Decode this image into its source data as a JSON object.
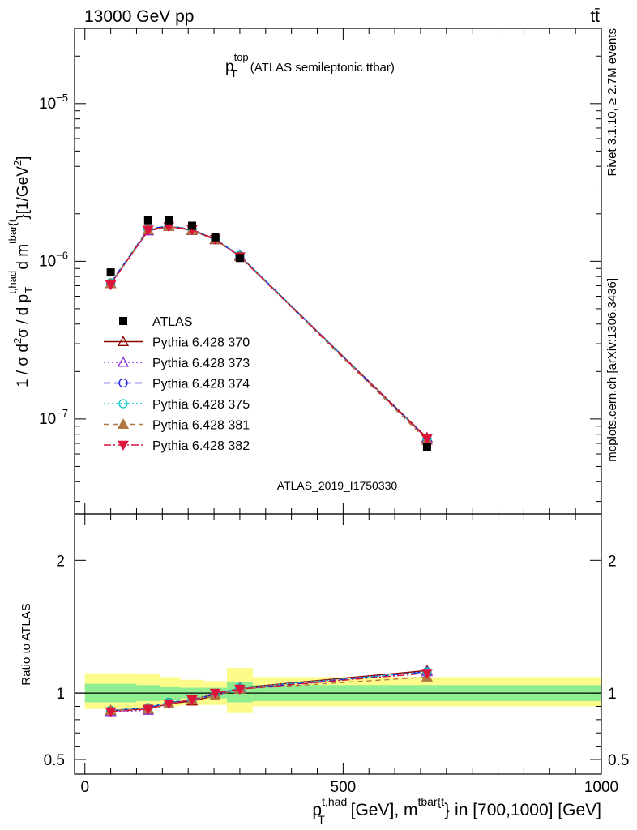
{
  "header": {
    "energy_label": "13000 GeV pp",
    "process_label": "tt̄"
  },
  "side_labels": {
    "rivet": "Rivet 3.1.10, ≥ 2.7M events",
    "url": "mcplots.cern.ch [arXiv:1306.3436]"
  },
  "chart_data": [
    {
      "type": "line",
      "panel": "main",
      "title": {
        "main": "p",
        "sub": "T",
        "sup": "top",
        "rest": " (ATLAS semileptonic ttbar)"
      },
      "watermark": "ATLAS_2019_I1750330",
      "ylabel": "1 / σ d²σ / d p_T^{t,had} d m^{tbar{t}} [1/GeV²]",
      "ylabel_parts": {
        "a": "1 / σ d",
        "a_sup": "2",
        "b": "σ / d p",
        "b_sub": "T",
        "b_sup": "t,had",
        "c": " d m",
        "c_sup": "tbar{t",
        "d": "}[1/GeV",
        "d_sup": "2",
        "e": "]"
      },
      "yscale": "log",
      "ylim": [
        2.5e-08,
        3e-05
      ],
      "xlim": [
        -20,
        1000
      ],
      "ytick_labels": [
        {
          "value": 1e-07,
          "base": "10",
          "exp": "−7"
        },
        {
          "value": 1e-06,
          "base": "10",
          "exp": "−6"
        },
        {
          "value": 1e-05,
          "base": "10",
          "exp": "−5"
        }
      ],
      "x": [
        50,
        122.5,
        162.5,
        207.5,
        252.5,
        300,
        662.5
      ],
      "data": {
        "name": "ATLAS",
        "values": [
          8.5e-07,
          1.82e-06,
          1.82e-06,
          1.68e-06,
          1.42e-06,
          1.05e-06,
          6.6e-08
        ]
      },
      "series": [
        {
          "name": "Pythia 6.428 370",
          "color": "#8b0000",
          "dash": "",
          "marker": "triangle-open",
          "values": [
            7.2e-07,
            1.56e-06,
            1.66e-06,
            1.57e-06,
            1.37e-06,
            1.08e-06,
            7.6e-08
          ]
        },
        {
          "name": "Pythia 6.428 373",
          "color": "#8a2be2",
          "dash": "2,3",
          "marker": "triangle-open",
          "values": [
            7.2e-07,
            1.56e-06,
            1.67e-06,
            1.58e-06,
            1.38e-06,
            1.09e-06,
            7.5e-08
          ]
        },
        {
          "name": "Pythia 6.428 374",
          "color": "#1a1ae6",
          "dash": "8,5",
          "marker": "circle-open",
          "values": [
            7.3e-07,
            1.6e-06,
            1.68e-06,
            1.59e-06,
            1.38e-06,
            1.08e-06,
            7.5e-08
          ]
        },
        {
          "name": "Pythia 6.428 375",
          "color": "#00c8c8",
          "dash": "2,3",
          "marker": "circle-open",
          "values": [
            7.3e-07,
            1.6e-06,
            1.68e-06,
            1.59e-06,
            1.39e-06,
            1.09e-06,
            7.5e-08
          ]
        },
        {
          "name": "Pythia 6.428 381",
          "color": "#b07840",
          "dash": "6,5",
          "marker": "triangle-filled",
          "values": [
            7.2e-07,
            1.58e-06,
            1.66e-06,
            1.58e-06,
            1.38e-06,
            1.07e-06,
            7.3e-08
          ]
        },
        {
          "name": "Pythia 6.428 382",
          "color": "#dc143c",
          "dash": "9,3,2,3",
          "marker": "triangle-down-filled",
          "values": [
            7.1e-07,
            1.58e-06,
            1.66e-06,
            1.59e-06,
            1.38e-06,
            1.07e-06,
            7.5e-08
          ]
        }
      ]
    },
    {
      "type": "line",
      "panel": "ratio",
      "ylabel": "Ratio to ATLAS",
      "ylim": [
        0.39,
        2.35
      ],
      "ytick_labels": [
        "0.5",
        "1",
        "2"
      ],
      "yticks": [
        0.5,
        1,
        2
      ],
      "xtick_labels": [
        "0",
        "500",
        "1000"
      ],
      "xticks": [
        0,
        500,
        1000
      ],
      "xlabel_parts": {
        "a": "p",
        "a_sub": "T",
        "a_sup": "t,had",
        "b": " [GeV], m",
        "b_sup": "tbar{t",
        "c": "} in [700,1000] [GeV]"
      },
      "bands": [
        {
          "x0": 0,
          "x1": 100,
          "yellow": [
            0.88,
            1.15
          ],
          "green": [
            0.93,
            1.07
          ]
        },
        {
          "x0": 100,
          "x1": 145,
          "yellow": [
            0.89,
            1.14
          ],
          "green": [
            0.94,
            1.06
          ]
        },
        {
          "x0": 145,
          "x1": 185,
          "yellow": [
            0.9,
            1.12
          ],
          "green": [
            0.95,
            1.05
          ]
        },
        {
          "x0": 185,
          "x1": 230,
          "yellow": [
            0.91,
            1.1
          ],
          "green": [
            0.96,
            1.04
          ]
        },
        {
          "x0": 230,
          "x1": 275,
          "yellow": [
            0.91,
            1.09
          ],
          "green": [
            0.96,
            1.04
          ]
        },
        {
          "x0": 275,
          "x1": 325,
          "yellow": [
            0.85,
            1.19
          ],
          "green": [
            0.93,
            1.08
          ]
        },
        {
          "x0": 325,
          "x1": 1000,
          "yellow": [
            0.9,
            1.12
          ],
          "green": [
            0.94,
            1.06
          ]
        }
      ],
      "series_ratios": [
        [
          0.87,
          0.88,
          0.92,
          0.94,
          0.98,
          1.04,
          1.17
        ],
        [
          0.86,
          0.87,
          0.92,
          0.95,
          0.98,
          1.04,
          1.16
        ],
        [
          0.87,
          0.89,
          0.93,
          0.95,
          0.99,
          1.03,
          1.16
        ],
        [
          0.87,
          0.89,
          0.93,
          0.95,
          0.99,
          1.04,
          1.16
        ],
        [
          0.87,
          0.88,
          0.92,
          0.95,
          0.98,
          1.03,
          1.12
        ],
        [
          0.86,
          0.88,
          0.92,
          0.95,
          1.0,
          1.03,
          1.15
        ]
      ]
    }
  ]
}
